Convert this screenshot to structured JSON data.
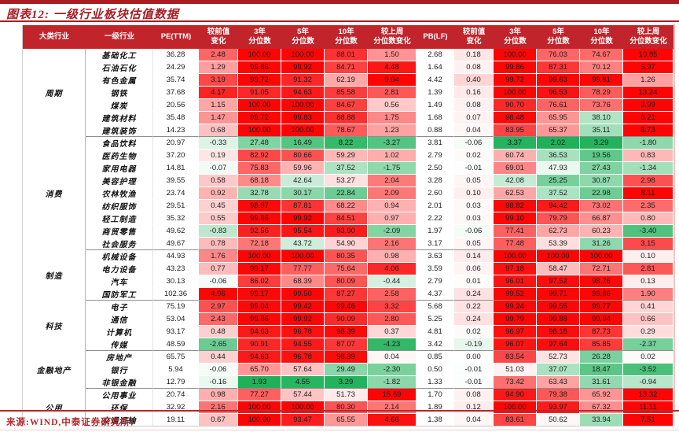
{
  "title": "图表12: 一级行业板块估值数据",
  "source": "来源:WIND,中泰证券研究所;",
  "accent_colors": {
    "header_bg": "#c2242b",
    "title_red": "#a81e24",
    "heat_red_max": "#fc0505",
    "heat_green_max": "#18af55"
  },
  "chart_data": {
    "type": "table",
    "title": "图表12: 一级行业板块估值数据",
    "columns": [
      "大类行业",
      "一级行业",
      "PE(TTM)",
      "较前值\n变化",
      "3年\n分位数",
      "5年\n分位数",
      "10年\n分位数",
      "较上周\n分位数变化",
      "PB(LF)",
      "较前值\n变化",
      "3年\n分位数",
      "5年\n分位数",
      "10年\n分位数",
      "较上周\n分位数变化"
    ],
    "value_types": [
      "plain",
      "chg",
      "heat",
      "heat",
      "heat",
      "chg",
      "plain",
      "chg",
      "heat",
      "heat",
      "heat",
      "chg"
    ],
    "groups": [
      {
        "name": "周期",
        "rows": [
          {
            "name": "基础化工",
            "values": [
              "36.28",
              "2.48",
              "100.00",
              "100.00",
              "88.01",
              "1.50",
              "2.68",
              "0.18",
              "100.00",
              "76.03",
              "74.67",
              "10.85"
            ]
          },
          {
            "name": "石油石化",
            "values": [
              "24.29",
              "1.29",
              "99.86",
              "99.92",
              "84.71",
              "4.48",
              "1.64",
              "0.08",
              "99.86",
              "87.31",
              "70.12",
              "5.97"
            ]
          },
          {
            "name": "有色金属",
            "values": [
              "35.74",
              "3.19",
              "99.72",
              "91.32",
              "62.19",
              "9.04",
              "4.42",
              "0.40",
              "99.72",
              "99.63",
              "99.81",
              "1.26"
            ]
          },
          {
            "name": "钢铁",
            "values": [
              "37.68",
              "4.17",
              "91.05",
              "94.63",
              "85.58",
              "2.81",
              "1.39",
              "0.16",
              "100.00",
              "96.53",
              "78.29",
              "13.24"
            ]
          },
          {
            "name": "煤炭",
            "values": [
              "20.56",
              "1.15",
              "100.00",
              "100.00",
              "84.67",
              "0.56",
              "1.49",
              "0.08",
              "90.70",
              "76.61",
              "73.76",
              "9.99"
            ]
          },
          {
            "name": "建筑材料",
            "values": [
              "35.48",
              "1.47",
              "99.72",
              "99.83",
              "88.88",
              "1.75",
              "1.68",
              "0.07",
              "98.48",
              "65.95",
              "38.10",
              "6.21"
            ]
          },
          {
            "name": "建筑装饰",
            "values": [
              "14.23",
              "0.68",
              "100.00",
              "100.00",
              "78.67",
              "1.23",
              "0.88",
              "0.04",
              "83.95",
              "65.37",
              "35.11",
              "8.73"
            ]
          }
        ]
      },
      {
        "name": "消费",
        "rows": [
          {
            "name": "食品饮料",
            "values": [
              "20.97",
              "-0.33",
              "27.48",
              "16.49",
              "8.22",
              "-3.27",
              "3.81",
              "-0.06",
              "3.37",
              "2.02",
              "3.29",
              "-1.80"
            ]
          },
          {
            "name": "医药生物",
            "values": [
              "37.20",
              "0.19",
              "82.92",
              "80.66",
              "59.29",
              "1.02",
              "2.79",
              "0.02",
              "60.74",
              "36.53",
              "19.56",
              "0.83"
            ]
          },
          {
            "name": "家用电器",
            "values": [
              "14.81",
              "-0.07",
              "75.83",
              "59.96",
              "37.52",
              "-1.75",
              "2.50",
              "-0.01",
              "69.01",
              "47.93",
              "27.43",
              "-1.34"
            ]
          },
          {
            "name": "美容护理",
            "values": [
              "39.55",
              "0.58",
              "68.18",
              "42.64",
              "53.27",
              "2.04",
              "3.28",
              "0.05",
              "42.08",
              "25.25",
              "30.87",
              "2.98"
            ]
          },
          {
            "name": "农林牧渔",
            "values": [
              "23.74",
              "0.92",
              "32.78",
              "30.17",
              "22.84",
              "2.09",
              "2.60",
              "0.10",
              "62.53",
              "37.52",
              "22.98",
              "8.11"
            ]
          },
          {
            "name": "纺织服饰",
            "values": [
              "29.51",
              "0.45",
              "98.97",
              "87.81",
              "68.22",
              "0.94",
              "2.01",
              "0.03",
              "98.82",
              "94.42",
              "73.02",
              "2.35"
            ]
          },
          {
            "name": "轻工制造",
            "values": [
              "35.32",
              "0.55",
              "99.86",
              "99.92",
              "84.51",
              "0.97",
              "2.22",
              "0.03",
              "99.10",
              "79.79",
              "66.87",
              "0.80"
            ]
          },
          {
            "name": "商贸零售",
            "values": [
              "49.62",
              "-0.83",
              "92.56",
              "95.54",
              "93.90",
              "-2.09",
              "1.97",
              "-0.06",
              "77.41",
              "62.73",
              "60.23",
              "-3.40"
            ]
          },
          {
            "name": "社会服务",
            "values": [
              "49.67",
              "0.78",
              "72.18",
              "43.72",
              "54.90",
              "2.16",
              "3.17",
              "0.05",
              "77.48",
              "53.39",
              "31.26",
              "3.15"
            ]
          }
        ]
      },
      {
        "name": "制造",
        "rows": [
          {
            "name": "机械设备",
            "values": [
              "44.93",
              "1.76",
              "100.00",
              "100.00",
              "80.35",
              "0.98",
              "3.63",
              "0.14",
              "100.00",
              "100.00",
              "100.00",
              "0.10"
            ]
          },
          {
            "name": "电力设备",
            "values": [
              "43.23",
              "0.77",
              "99.17",
              "77.77",
              "75.64",
              "4.06",
              "3.59",
              "0.06",
              "97.18",
              "58.47",
              "72.71",
              "2.81"
            ]
          },
          {
            "name": "汽车",
            "values": [
              "30.13",
              "-0.06",
              "86.02",
              "68.39",
              "80.09",
              "-0.44",
              "2.79",
              "0.01",
              "96.01",
              "97.52",
              "98.76",
              "0.13"
            ]
          },
          {
            "name": "国防军工",
            "values": [
              "102.36",
              "4.96",
              "99.17",
              "99.50",
              "87.27",
              "2.58",
              "4.37",
              "0.24",
              "99.52",
              "99.71",
              "99.86",
              "1.90"
            ]
          }
        ]
      },
      {
        "name": "科技",
        "rows": [
          {
            "name": "电子",
            "values": [
              "75.19",
              "2.97",
              "99.04",
              "99.42",
              "99.46",
              "3.32",
              "5.68",
              "0.22",
              "99.24",
              "99.55",
              "99.77",
              "0.41"
            ]
          },
          {
            "name": "通信",
            "values": [
              "53.04",
              "2.43",
              "99.86",
              "99.92",
              "90.09",
              "2.80",
              "5.25",
              "0.24",
              "99.79",
              "99.88",
              "99.94",
              "0.66"
            ]
          },
          {
            "name": "计算机",
            "values": [
              "93.17",
              "0.48",
              "94.63",
              "96.78",
              "98.39",
              "0.37",
              "4.81",
              "0.02",
              "96.97",
              "98.18",
              "87.73",
              "0.29"
            ]
          },
          {
            "name": "传媒",
            "values": [
              "48.59",
              "-2.65",
              "90.91",
              "94.55",
              "87.07",
              "-4.23",
              "3.42",
              "-0.19",
              "96.07",
              "97.64",
              "85.85",
              "-2.37"
            ]
          }
        ]
      },
      {
        "name": "金融地产",
        "rows": [
          {
            "name": "房地产",
            "values": [
              "65.75",
              "0.44",
              "94.63",
              "96.78",
              "98.39",
              "0.04",
              "0.85",
              "0.00",
              "83.54",
              "52.73",
              "26.28",
              "0.02"
            ]
          },
          {
            "name": "银行",
            "values": [
              "5.94",
              "-0.06",
              "65.70",
              "57.64",
              "29.49",
              "-2.30",
              "0.50",
              "-0.01",
              "51.03",
              "37.07",
              "18.47",
              "-3.52"
            ]
          },
          {
            "name": "非银金融",
            "values": [
              "12.79",
              "-0.16",
              "1.93",
              "4.55",
              "3.29",
              "-1.82",
              "1.33",
              "-0.01",
              "73.42",
              "63.43",
              "31.61",
              "-0.94"
            ]
          }
        ]
      },
      {
        "name": "公用",
        "rows": [
          {
            "name": "公用事业",
            "values": [
              "20.74",
              "0.98",
              "77.27",
              "57.44",
              "51.73",
              "15.69",
              "1.70",
              "0.08",
              "94.90",
              "79.38",
              "65.92",
              "13.32"
            ]
          },
          {
            "name": "环保",
            "values": [
              "32.92",
              "2.16",
              "100.00",
              "100.00",
              "80.30",
              "2.14",
              "1.89",
              "0.12",
              "100.00",
              "93.97",
              "67.32",
              "11.11"
            ]
          },
          {
            "name": "交通运输",
            "values": [
              "19.11",
              "0.67",
              "100.00",
              "93.47",
              "65.55",
              "4.66",
              "1.38",
              "0.04",
              "83.61",
              "50.62",
              "33.94",
              "7.51"
            ]
          }
        ]
      }
    ]
  }
}
